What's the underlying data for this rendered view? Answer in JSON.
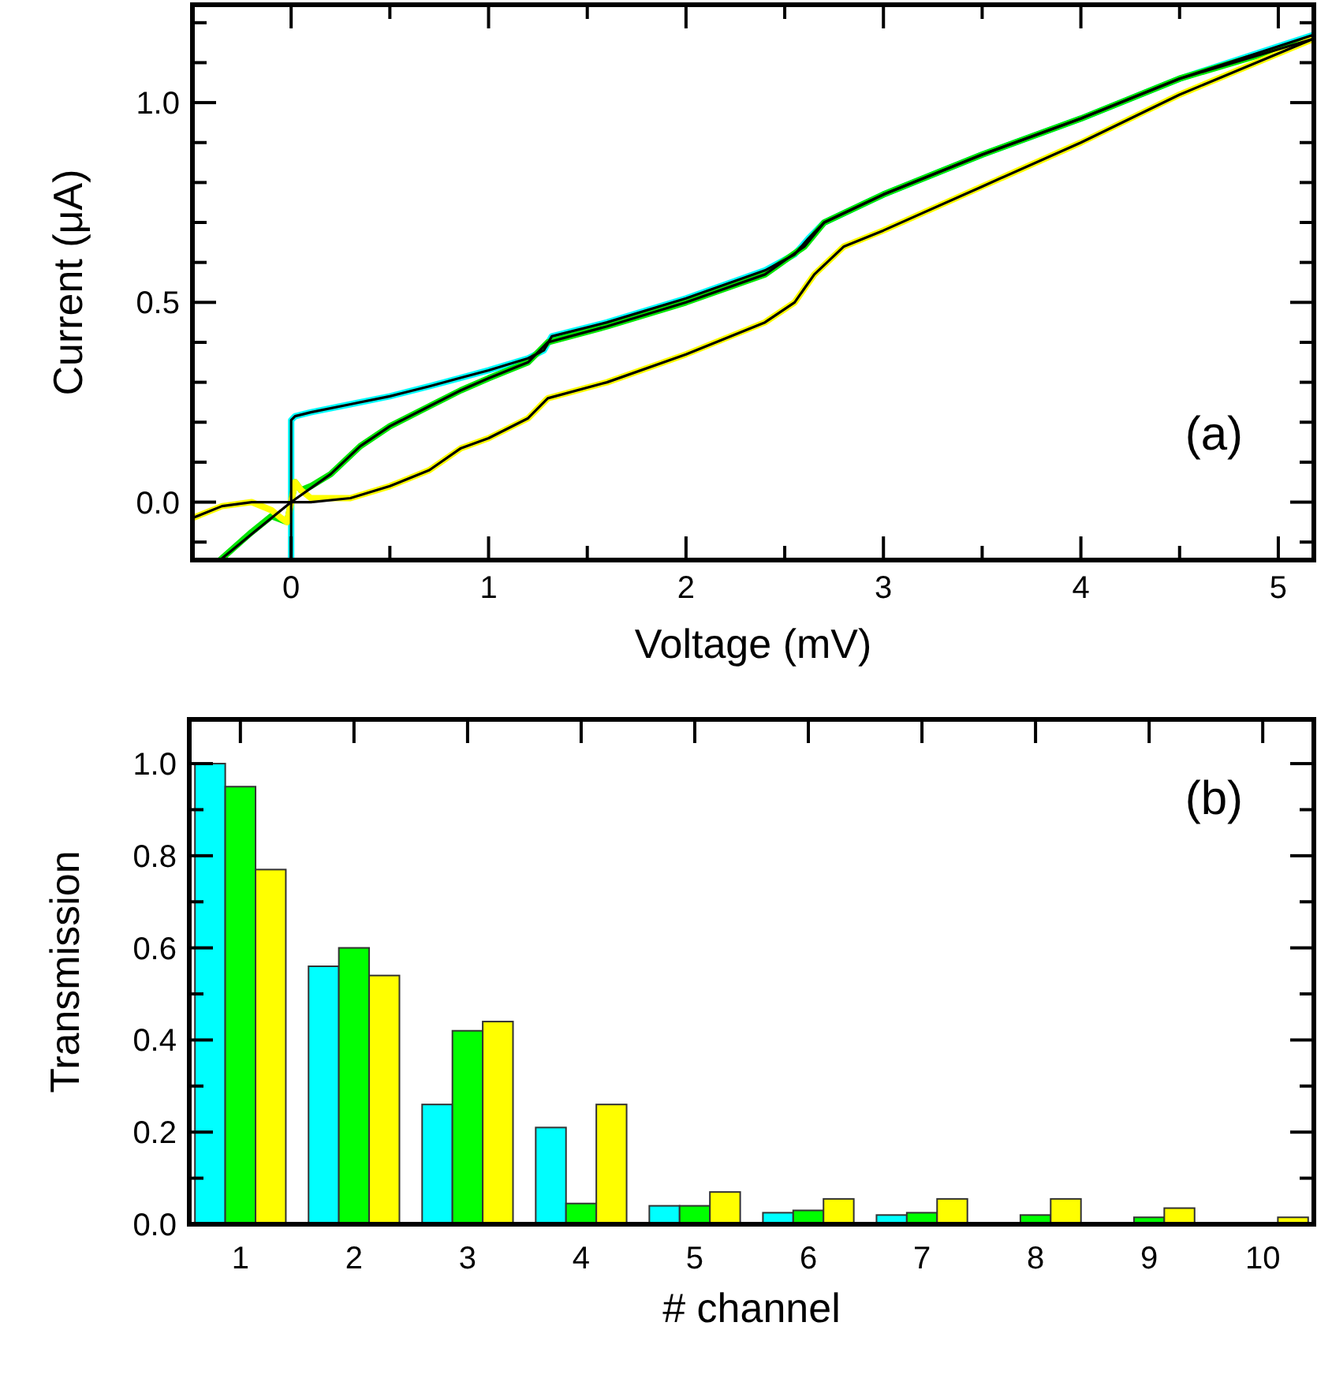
{
  "chart_data": [
    {
      "type": "line",
      "xlabel": "Voltage (mV)",
      "ylabel": "Current (μA)",
      "annotations": [
        "(a)"
      ],
      "xlim": [
        -0.5,
        5.18
      ],
      "ylim": [
        -0.145,
        1.245
      ],
      "xticks": [
        {
          "value": -0.5,
          "label": null
        },
        0,
        {
          "value": 0.5,
          "label": null
        },
        1,
        {
          "value": 1.5,
          "label": null
        },
        2,
        {
          "value": 2.5,
          "label": null
        },
        3,
        {
          "value": 3.5,
          "label": null
        },
        4,
        {
          "value": 4.5,
          "label": null
        },
        5
      ],
      "yticks": [
        {
          "value": -0.1,
          "label": null
        },
        {
          "value": 0,
          "label": "0.0"
        },
        {
          "value": 0.1,
          "label": null
        },
        {
          "value": 0.2,
          "label": null
        },
        {
          "value": 0.3,
          "label": null
        },
        {
          "value": 0.4,
          "label": null
        },
        0.5,
        {
          "value": 0.6,
          "label": null
        },
        {
          "value": 0.7,
          "label": null
        },
        {
          "value": 0.8,
          "label": null
        },
        {
          "value": 0.9,
          "label": null
        },
        {
          "value": 1,
          "label": "1.0"
        },
        {
          "value": 1.1,
          "label": null
        },
        {
          "value": 1.2,
          "label": null
        }
      ],
      "series": [
        {
          "color": "#00ffff",
          "x": [
            0,
            0,
            0.02,
            0.1,
            0.3,
            0.5,
            0.7,
            0.85,
            1.0,
            1.2,
            1.28,
            1.32,
            1.6,
            2.0,
            2.4,
            2.55,
            2.62,
            2.7,
            3.0,
            3.5,
            4.0,
            4.5,
            5.18
          ],
          "values": [
            -0.145,
            0.205,
            0.215,
            0.225,
            0.245,
            0.265,
            0.29,
            0.31,
            0.33,
            0.36,
            0.38,
            0.415,
            0.45,
            0.51,
            0.58,
            0.62,
            0.66,
            0.7,
            0.77,
            0.87,
            0.96,
            1.06,
            1.17
          ]
        },
        {
          "color": "#00e600",
          "x": [
            -0.36,
            -0.2,
            -0.1,
            -0.02,
            0.02,
            0.05,
            0.1,
            0.2,
            0.35,
            0.5,
            0.7,
            0.86,
            1.0,
            1.2,
            1.3,
            1.6,
            2.0,
            2.4,
            2.6,
            2.7,
            3.0,
            3.5,
            4.0,
            4.5,
            5.18
          ],
          "values": [
            -0.145,
            -0.075,
            -0.035,
            -0.05,
            0.05,
            0.03,
            0.04,
            0.07,
            0.14,
            0.19,
            0.24,
            0.28,
            0.31,
            0.35,
            0.4,
            0.44,
            0.5,
            0.57,
            0.64,
            0.7,
            0.77,
            0.87,
            0.96,
            1.06,
            1.16
          ]
        },
        {
          "color": "#ffff00",
          "x": [
            -0.5,
            -0.35,
            -0.2,
            -0.1,
            -0.05,
            -0.02,
            0.02,
            0.05,
            0.1,
            0.3,
            0.5,
            0.7,
            0.86,
            1.0,
            1.2,
            1.3,
            1.6,
            2.0,
            2.4,
            2.55,
            2.65,
            2.8,
            3.0,
            3.5,
            4.0,
            4.5,
            5.18
          ],
          "values": [
            -0.04,
            -0.01,
            0,
            -0.02,
            -0.04,
            -0.05,
            0.05,
            0.03,
            0.01,
            0.01,
            0.04,
            0.08,
            0.135,
            0.16,
            0.21,
            0.26,
            0.3,
            0.37,
            0.45,
            0.5,
            0.57,
            0.64,
            0.68,
            0.79,
            0.9,
            1.02,
            1.16
          ]
        },
        {
          "color": "#000000",
          "x": [
            0,
            0,
            0.02,
            0.1,
            0.3,
            0.5,
            0.7,
            0.85,
            1.0,
            1.2,
            1.28,
            1.32,
            1.6,
            2.0,
            2.4,
            2.55,
            2.62,
            2.7,
            3.0,
            3.5,
            4.0,
            4.5,
            5.18
          ],
          "values": [
            -0.145,
            0.205,
            0.215,
            0.225,
            0.245,
            0.265,
            0.29,
            0.31,
            0.33,
            0.36,
            0.38,
            0.415,
            0.45,
            0.51,
            0.58,
            0.62,
            0.66,
            0.7,
            0.77,
            0.87,
            0.96,
            1.06,
            1.17
          ]
        },
        {
          "color": "#000000",
          "x": [
            -0.36,
            -0.2,
            -0.1,
            0,
            0.1,
            0.2,
            0.35,
            0.5,
            0.7,
            0.86,
            1.0,
            1.2,
            1.3,
            1.6,
            2.0,
            2.4,
            2.6,
            2.7,
            3.0,
            3.5,
            4.0,
            4.5,
            5.18
          ],
          "values": [
            -0.145,
            -0.08,
            -0.04,
            0,
            0.035,
            0.07,
            0.14,
            0.19,
            0.24,
            0.28,
            0.31,
            0.35,
            0.4,
            0.44,
            0.5,
            0.57,
            0.64,
            0.7,
            0.77,
            0.87,
            0.96,
            1.06,
            1.16
          ]
        },
        {
          "color": "#000000",
          "x": [
            -0.5,
            -0.35,
            -0.2,
            -0.1,
            0,
            0.1,
            0.3,
            0.5,
            0.7,
            0.86,
            1.0,
            1.2,
            1.3,
            1.6,
            2.0,
            2.4,
            2.55,
            2.65,
            2.8,
            3.0,
            3.5,
            4.0,
            4.5,
            5.18
          ],
          "values": [
            -0.04,
            -0.01,
            0,
            0,
            0,
            0,
            0.01,
            0.04,
            0.08,
            0.135,
            0.16,
            0.21,
            0.26,
            0.3,
            0.37,
            0.45,
            0.5,
            0.57,
            0.64,
            0.68,
            0.79,
            0.9,
            1.02,
            1.16
          ]
        }
      ]
    },
    {
      "type": "bar",
      "xlabel": "# channel",
      "ylabel": "Transmission",
      "annotations": [
        "(b)"
      ],
      "categories": [
        "1",
        "2",
        "3",
        "4",
        "5",
        "6",
        "7",
        "8",
        "9",
        "10"
      ],
      "ylim": [
        0,
        1.096
      ],
      "yticks": [
        {
          "value": 0,
          "label": "0.0"
        },
        {
          "value": 0.1,
          "label": null
        },
        0.2,
        {
          "value": 0.3,
          "label": null
        },
        0.4,
        {
          "value": 0.5,
          "label": null
        },
        0.6,
        {
          "value": 0.7,
          "label": null
        },
        0.8,
        {
          "value": 0.9,
          "label": null
        },
        {
          "value": 1,
          "label": "1.0"
        }
      ],
      "series": [
        {
          "color": "#00ffff",
          "values": [
            1.0,
            0.56,
            0.26,
            0.21,
            0.04,
            0.025,
            0.02,
            0.003,
            0,
            0.003
          ]
        },
        {
          "color": "#00ff00",
          "values": [
            0.95,
            0.6,
            0.42,
            0.045,
            0.04,
            0.03,
            0.025,
            0.02,
            0.015,
            0
          ]
        },
        {
          "color": "#ffff00",
          "values": [
            0.77,
            0.54,
            0.44,
            0.26,
            0.07,
            0.055,
            0.055,
            0.055,
            0.035,
            0.015
          ]
        }
      ]
    }
  ]
}
